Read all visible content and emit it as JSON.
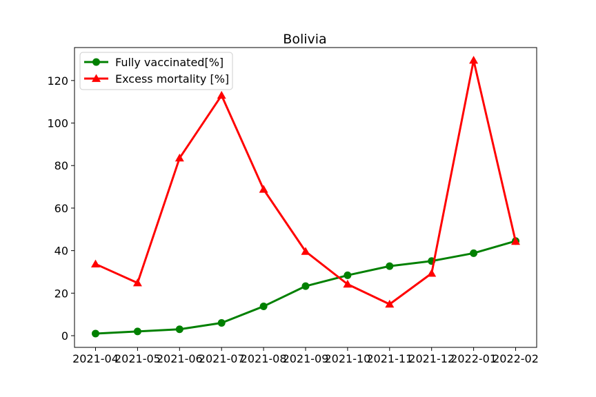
{
  "chart_data": {
    "type": "line",
    "title": "Bolivia",
    "xlabel": "",
    "ylabel": "",
    "categories": [
      "2021-04",
      "2021-05",
      "2021-06",
      "2021-07",
      "2021-08",
      "2021-09",
      "2021-10",
      "2021-11",
      "2021-12",
      "2022-01",
      "2022-02"
    ],
    "ylim": [
      -5.5,
      135.5
    ],
    "yticks": [
      0,
      20,
      40,
      60,
      80,
      100,
      120
    ],
    "grid": false,
    "legend_position": "top-left",
    "series": [
      {
        "name": "Fully vaccinated[%]",
        "color": "#008000",
        "marker": "circle",
        "values": [
          1.0,
          2.0,
          3.0,
          6.0,
          13.8,
          23.3,
          28.4,
          32.7,
          35.1,
          38.8,
          44.5
        ]
      },
      {
        "name": "Excess mortality [%]",
        "color": "#ff0000",
        "marker": "triangle",
        "values": [
          33.7,
          24.8,
          83.5,
          113.0,
          68.8,
          39.6,
          24.2,
          14.8,
          29.3,
          129.5,
          44.3
        ]
      }
    ]
  }
}
